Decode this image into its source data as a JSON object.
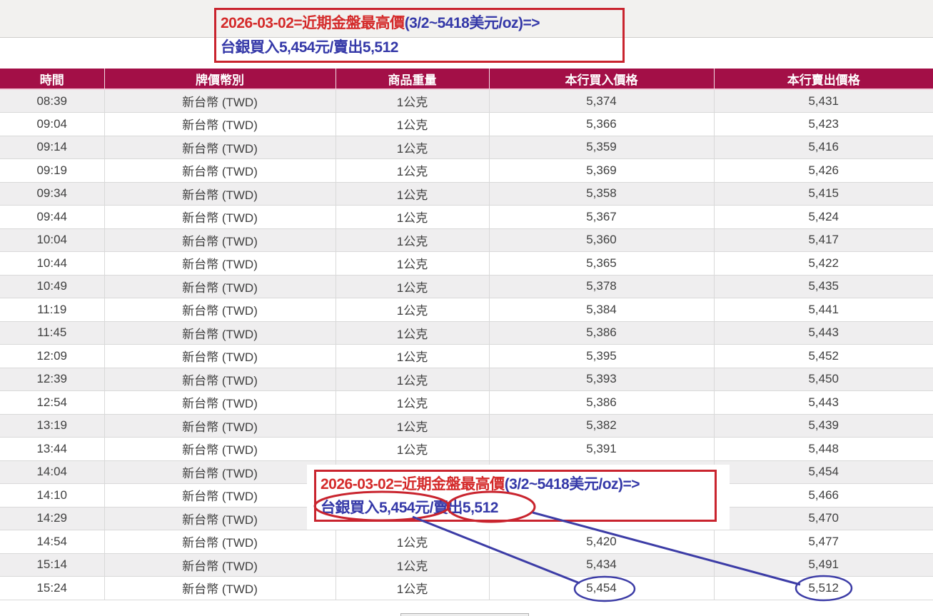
{
  "annotations": {
    "top_note": {
      "line1_red": "2026-03-02=近期金盤最高價",
      "line1_blue": "(3/2~5418美元/oz)=>",
      "line2_blue": "台銀買入5,454元/賣出5,512"
    },
    "overlay_note": {
      "line1_red": "2026-03-02=近期金盤最高價",
      "line1_blue": "(3/2~5418美元/oz)=>",
      "line2_circled_buy": "台銀買入5,454元",
      "line2_slash": "/",
      "line2_circled_sell": "賣出5,512"
    }
  },
  "table": {
    "headers": [
      "時間",
      "牌價幣別",
      "商品重量",
      "本行買入價格",
      "本行賣出價格"
    ],
    "rows": [
      [
        "08:39",
        "新台幣 (TWD)",
        "1公克",
        "5,374",
        "5,431"
      ],
      [
        "09:04",
        "新台幣 (TWD)",
        "1公克",
        "5,366",
        "5,423"
      ],
      [
        "09:14",
        "新台幣 (TWD)",
        "1公克",
        "5,359",
        "5,416"
      ],
      [
        "09:19",
        "新台幣 (TWD)",
        "1公克",
        "5,369",
        "5,426"
      ],
      [
        "09:34",
        "新台幣 (TWD)",
        "1公克",
        "5,358",
        "5,415"
      ],
      [
        "09:44",
        "新台幣 (TWD)",
        "1公克",
        "5,367",
        "5,424"
      ],
      [
        "10:04",
        "新台幣 (TWD)",
        "1公克",
        "5,360",
        "5,417"
      ],
      [
        "10:44",
        "新台幣 (TWD)",
        "1公克",
        "5,365",
        "5,422"
      ],
      [
        "10:49",
        "新台幣 (TWD)",
        "1公克",
        "5,378",
        "5,435"
      ],
      [
        "11:19",
        "新台幣 (TWD)",
        "1公克",
        "5,384",
        "5,441"
      ],
      [
        "11:45",
        "新台幣 (TWD)",
        "1公克",
        "5,386",
        "5,443"
      ],
      [
        "12:09",
        "新台幣 (TWD)",
        "1公克",
        "5,395",
        "5,452"
      ],
      [
        "12:39",
        "新台幣 (TWD)",
        "1公克",
        "5,393",
        "5,450"
      ],
      [
        "12:54",
        "新台幣 (TWD)",
        "1公克",
        "5,386",
        "5,443"
      ],
      [
        "13:19",
        "新台幣 (TWD)",
        "1公克",
        "5,382",
        "5,439"
      ],
      [
        "13:44",
        "新台幣 (TWD)",
        "1公克",
        "5,391",
        "5,448"
      ],
      [
        "14:04",
        "新台幣 (TWD)",
        "",
        "",
        "5,454"
      ],
      [
        "14:10",
        "新台幣 (TWD)",
        "",
        "",
        "5,466"
      ],
      [
        "14:29",
        "新台幣 (TWD)",
        "",
        "",
        "5,470"
      ],
      [
        "14:54",
        "新台幣 (TWD)",
        "1公克",
        "5,420",
        "5,477"
      ],
      [
        "15:14",
        "新台幣 (TWD)",
        "1公克",
        "5,434",
        "5,491"
      ],
      [
        "15:24",
        "新台幣 (TWD)",
        "1公克",
        "5,454",
        "5,512"
      ]
    ]
  },
  "colors": {
    "header_bg": "#a30f47",
    "row_alt": "#efeeef",
    "cell_border": "#d9d9d9",
    "cell_text": "#3f3f3f",
    "pink_line": "#f3cbda",
    "band_bg": "#f2f1ef",
    "band_line": "#cfcecc",
    "red_border": "#c9242e",
    "red_text": "#d42a2a",
    "blue_text": "#3438a8",
    "blue_draw": "#3c3ca6"
  }
}
